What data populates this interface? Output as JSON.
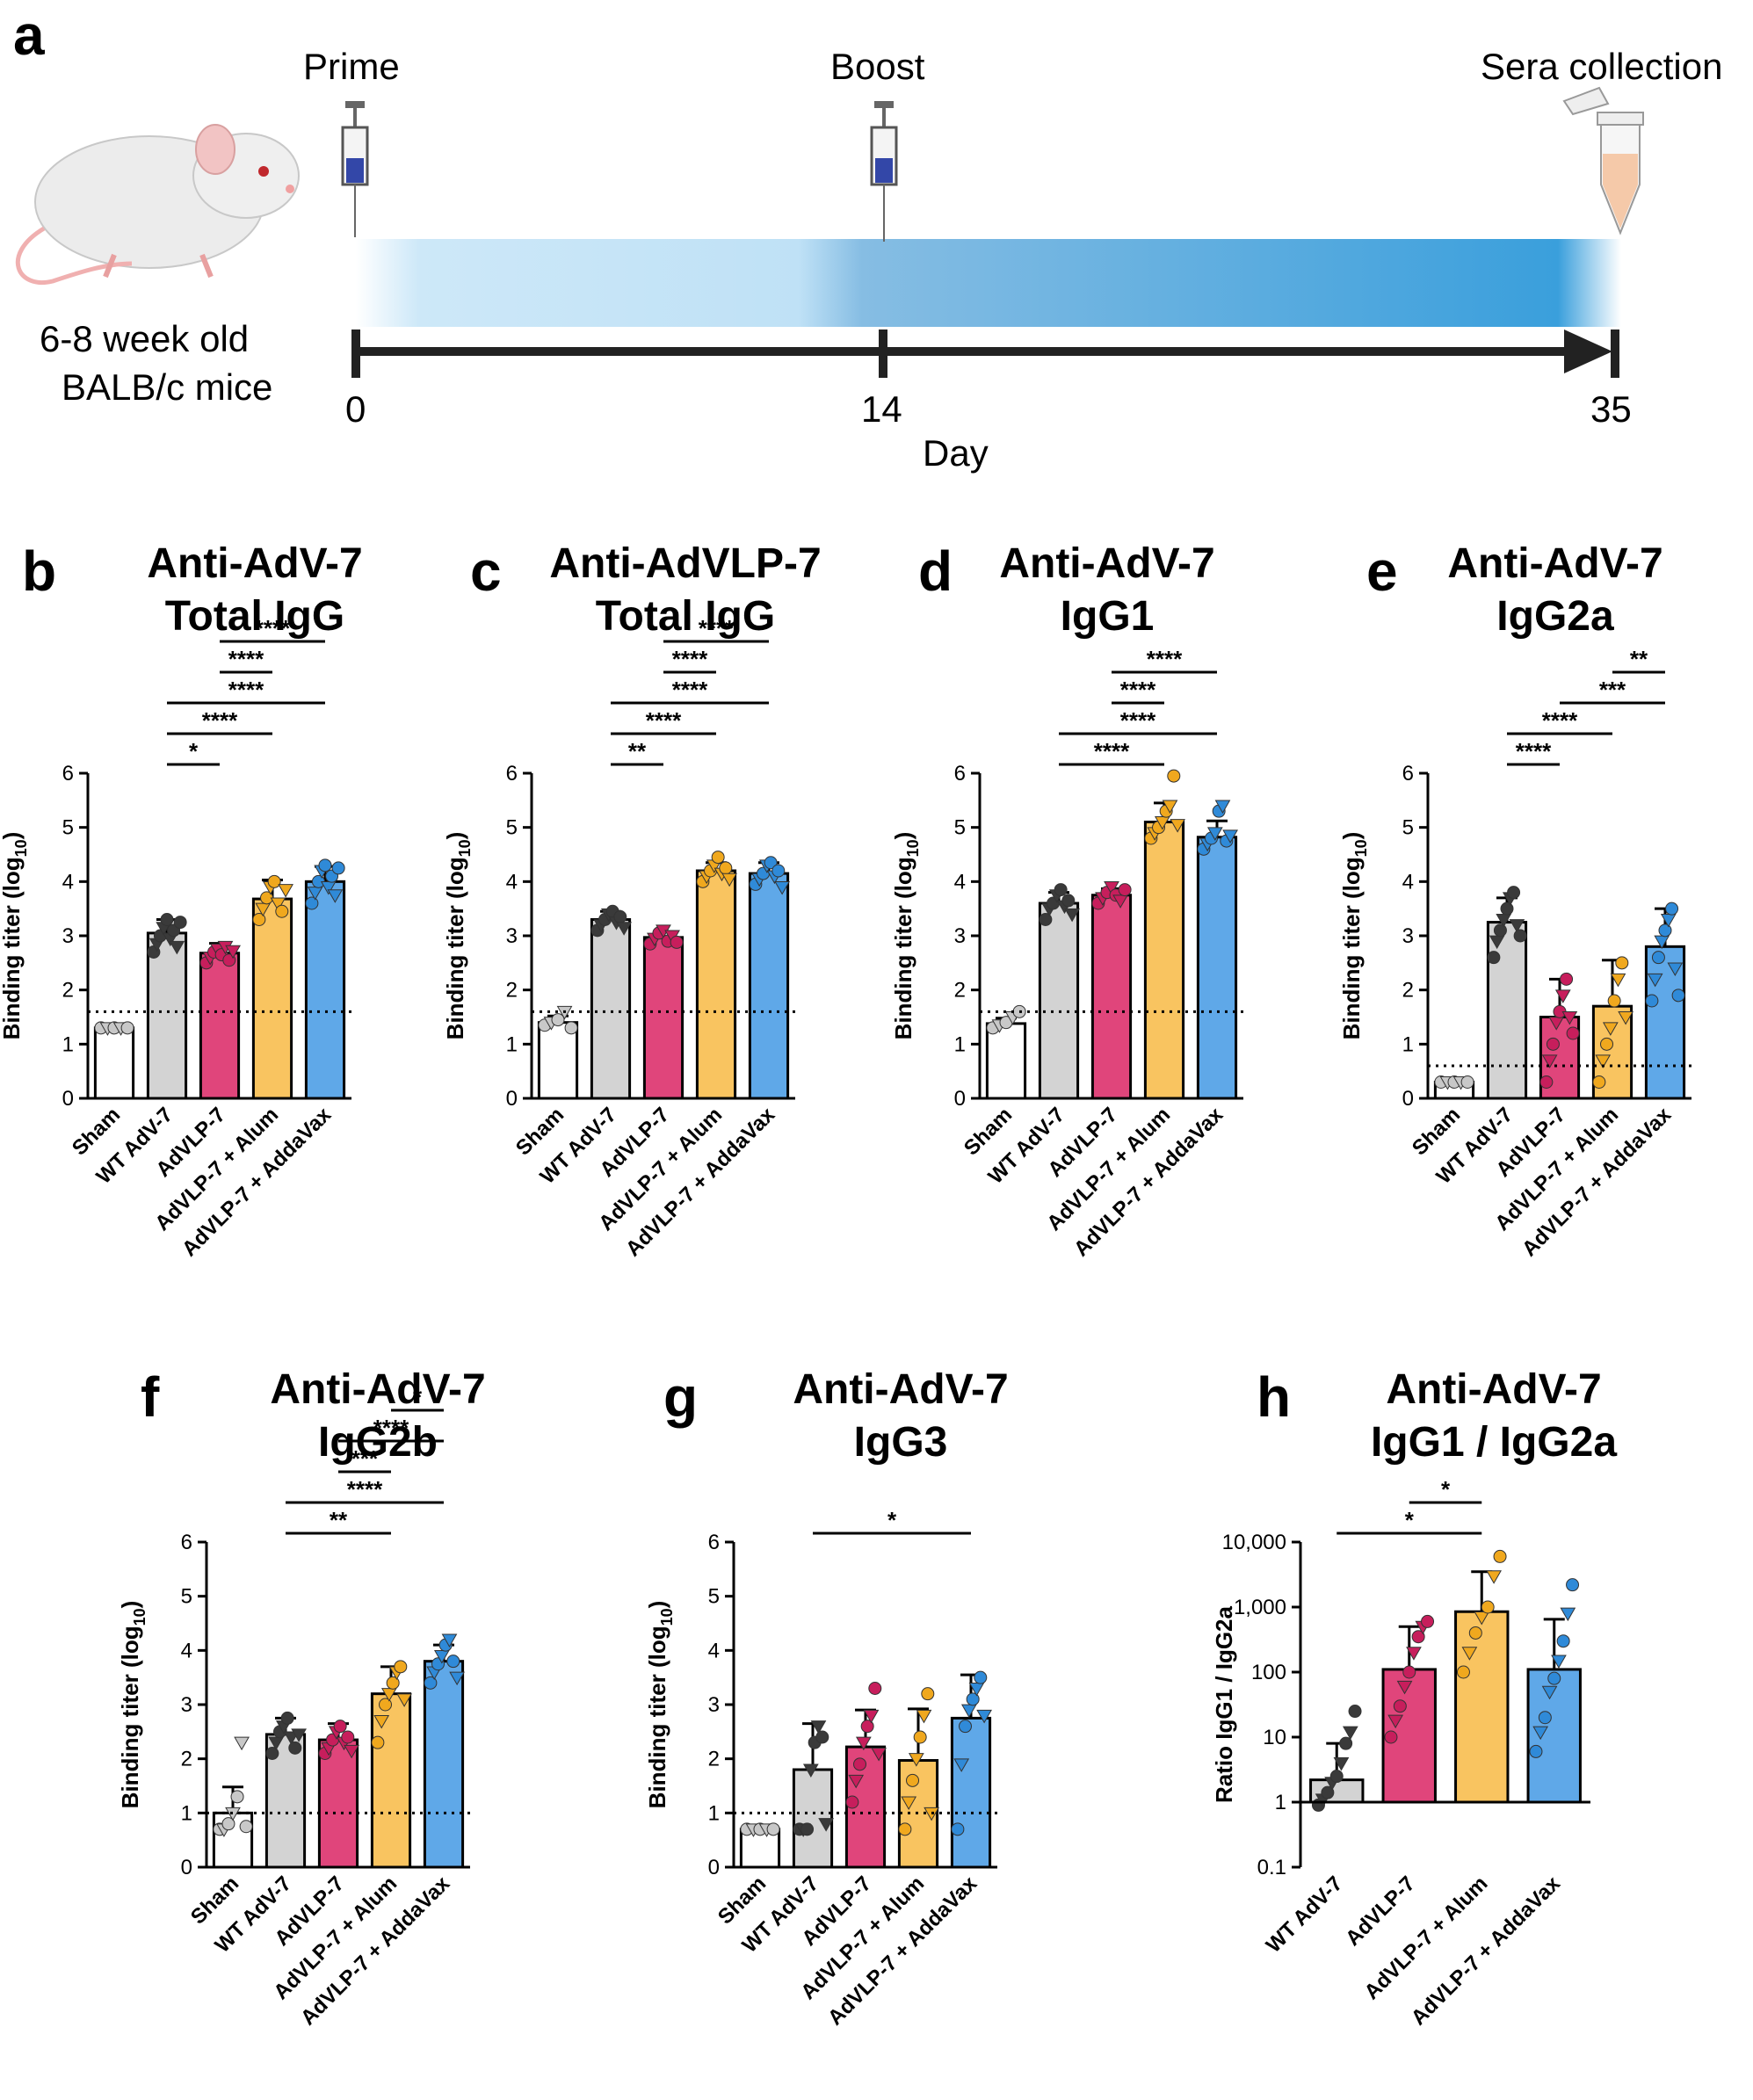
{
  "colors": {
    "sham": "#ffffff",
    "wt": "#d3d3d3",
    "advlp": "#e0457b",
    "alum": "#f9c460",
    "addavax": "#5fa8e8",
    "wt_pt": "#3a3a3a",
    "advlp_pt": "#c71e5c",
    "alum_pt": "#f0a81e",
    "addavax_pt": "#2f8ad8",
    "sham_pt": "#c8c8c8"
  },
  "timeline": {
    "letter": "a",
    "mouse_label_1": "6-8 week old",
    "mouse_label_2": "BALB/c mice",
    "prime": "Prime",
    "boost": "Boost",
    "sera": "Sera collection",
    "ticks": [
      "0",
      "14",
      "35"
    ],
    "xlabel": "Day"
  },
  "chart_data": [
    {
      "letter": "b",
      "title_1": "Anti-AdV-7",
      "title_2": "Total IgG",
      "type": "bar",
      "scale": "linear",
      "ylim": [
        0,
        6
      ],
      "yticks": [
        "0",
        "1",
        "2",
        "3",
        "4",
        "5",
        "6"
      ],
      "ylabel": "Binding titer (log",
      "ylabel_sub": "10",
      "ylabel_end": ")",
      "detection_limit": 1.6,
      "categories": [
        "Sham",
        "WT AdV-7",
        "AdVLP-7",
        "AdVLP-7 + Alum",
        "AdVLP-7 + AddaVax"
      ],
      "groups": [
        "sham",
        "wt",
        "advlp",
        "alum",
        "addavax"
      ],
      "values": [
        1.3,
        3.05,
        2.68,
        3.68,
        4.0
      ],
      "errors": [
        0.0,
        0.25,
        0.18,
        0.35,
        0.28
      ],
      "points": [
        [
          1.3,
          1.3,
          1.3,
          1.3,
          1.3
        ],
        [
          2.7,
          2.85,
          3.0,
          3.15,
          3.3,
          2.95,
          3.1,
          2.8,
          3.25
        ],
        [
          2.5,
          2.6,
          2.7,
          2.75,
          2.65,
          2.8,
          2.55,
          2.72
        ],
        [
          3.3,
          3.5,
          3.7,
          3.9,
          4.0,
          3.6,
          3.45,
          3.85
        ],
        [
          3.6,
          3.8,
          4.0,
          4.2,
          4.3,
          3.9,
          4.1,
          3.75,
          4.25
        ]
      ],
      "comparisons": [
        {
          "from": 1,
          "to": 2,
          "label": "*"
        },
        {
          "from": 1,
          "to": 3,
          "label": "****"
        },
        {
          "from": 1,
          "to": 4,
          "label": "****"
        },
        {
          "from": 2,
          "to": 3,
          "label": "****"
        },
        {
          "from": 2,
          "to": 4,
          "label": "****"
        }
      ]
    },
    {
      "letter": "c",
      "title_1": "Anti-AdVLP-7",
      "title_2": "Total IgG",
      "type": "bar",
      "scale": "linear",
      "ylim": [
        0,
        6
      ],
      "yticks": [
        "0",
        "1",
        "2",
        "3",
        "4",
        "5",
        "6"
      ],
      "ylabel": "Binding titer (log",
      "ylabel_sub": "10",
      "ylabel_end": ")",
      "detection_limit": 1.6,
      "categories": [
        "Sham",
        "WT AdV-7",
        "AdVLP-7",
        "AdVLP-7 + Alum",
        "AdVLP-7 + AddaVax"
      ],
      "groups": [
        "sham",
        "wt",
        "advlp",
        "alum",
        "addavax"
      ],
      "values": [
        1.4,
        3.3,
        2.97,
        4.2,
        4.15
      ],
      "errors": [
        0.12,
        0.15,
        0.1,
        0.15,
        0.2
      ],
      "points": [
        [
          1.35,
          1.4,
          1.45,
          1.6,
          1.3
        ],
        [
          3.1,
          3.2,
          3.3,
          3.4,
          3.45,
          3.25,
          3.35,
          3.15
        ],
        [
          2.85,
          2.95,
          3.05,
          3.1,
          2.9,
          3.0,
          2.88
        ],
        [
          4.0,
          4.1,
          4.2,
          4.3,
          4.45,
          4.15,
          4.25,
          4.05
        ],
        [
          3.95,
          4.05,
          4.15,
          4.3,
          4.35,
          4.1,
          4.2,
          3.9
        ]
      ],
      "comparisons": [
        {
          "from": 1,
          "to": 2,
          "label": "**"
        },
        {
          "from": 1,
          "to": 3,
          "label": "****"
        },
        {
          "from": 1,
          "to": 4,
          "label": "****"
        },
        {
          "from": 2,
          "to": 3,
          "label": "****"
        },
        {
          "from": 2,
          "to": 4,
          "label": "****"
        }
      ]
    },
    {
      "letter": "d",
      "title_1": "Anti-AdV-7",
      "title_2": "IgG1",
      "type": "bar",
      "scale": "linear",
      "ylim": [
        0,
        6
      ],
      "yticks": [
        "0",
        "1",
        "2",
        "3",
        "4",
        "5",
        "6"
      ],
      "ylabel": "Binding titer (log",
      "ylabel_sub": "10",
      "ylabel_end": ")",
      "detection_limit": 1.6,
      "categories": [
        "Sham",
        "WT AdV-7",
        "AdVLP-7",
        "AdVLP-7 + Alum",
        "AdVLP-7 + AddaVax"
      ],
      "groups": [
        "sham",
        "wt",
        "advlp",
        "alum",
        "addavax"
      ],
      "values": [
        1.38,
        3.6,
        3.75,
        5.1,
        4.82
      ],
      "errors": [
        0.1,
        0.2,
        0.12,
        0.35,
        0.3
      ],
      "points": [
        [
          1.3,
          1.35,
          1.4,
          1.5,
          1.6
        ],
        [
          3.3,
          3.5,
          3.6,
          3.75,
          3.85,
          3.55,
          3.65,
          3.4
        ],
        [
          3.6,
          3.7,
          3.8,
          3.9,
          3.75,
          3.65,
          3.85
        ],
        [
          4.8,
          4.9,
          5.0,
          5.1,
          5.3,
          5.4,
          5.95,
          5.05
        ],
        [
          4.6,
          4.7,
          4.8,
          4.9,
          5.3,
          5.4,
          4.75,
          4.85
        ]
      ],
      "comparisons": [
        {
          "from": 1,
          "to": 3,
          "label": "****"
        },
        {
          "from": 1,
          "to": 4,
          "label": "****"
        },
        {
          "from": 2,
          "to": 3,
          "label": "****"
        },
        {
          "from": 2,
          "to": 4,
          "label": "****"
        }
      ]
    },
    {
      "letter": "e",
      "title_1": "Anti-AdV-7",
      "title_2": "IgG2a",
      "type": "bar",
      "scale": "linear",
      "ylim": [
        0,
        6
      ],
      "yticks": [
        "0",
        "1",
        "2",
        "3",
        "4",
        "5",
        "6"
      ],
      "ylabel": "Binding titer (log",
      "ylabel_sub": "10",
      "ylabel_end": ")",
      "detection_limit": 0.6,
      "categories": [
        "Sham",
        "WT AdV-7",
        "AdVLP-7",
        "AdVLP-7 + Alum",
        "AdVLP-7 + AddaVax"
      ],
      "groups": [
        "sham",
        "wt",
        "advlp",
        "alum",
        "addavax"
      ],
      "values": [
        0.3,
        3.25,
        1.5,
        1.7,
        2.8
      ],
      "errors": [
        0.0,
        0.45,
        0.7,
        0.85,
        0.7
      ],
      "points": [
        [
          0.3,
          0.3,
          0.3,
          0.3,
          0.3
        ],
        [
          2.6,
          2.9,
          3.1,
          3.3,
          3.5,
          3.7,
          3.8,
          3.2,
          3.0
        ],
        [
          0.3,
          0.7,
          1.0,
          1.4,
          1.6,
          1.9,
          2.2,
          1.5,
          1.2
        ],
        [
          0.3,
          0.7,
          1.0,
          1.3,
          1.8,
          2.2,
          2.5,
          1.5
        ],
        [
          1.8,
          2.2,
          2.6,
          2.9,
          3.1,
          3.3,
          3.5,
          2.4,
          1.9
        ]
      ],
      "comparisons": [
        {
          "from": 1,
          "to": 2,
          "label": "****"
        },
        {
          "from": 1,
          "to": 3,
          "label": "****"
        },
        {
          "from": 2,
          "to": 4,
          "label": "***"
        },
        {
          "from": 3,
          "to": 4,
          "label": "**"
        }
      ]
    },
    {
      "letter": "f",
      "title_1": "Anti-AdV-7",
      "title_2": "IgG2b",
      "type": "bar",
      "scale": "linear",
      "ylim": [
        0,
        6
      ],
      "yticks": [
        "0",
        "1",
        "2",
        "3",
        "4",
        "5",
        "6"
      ],
      "ylabel": "Binding titer (log",
      "ylabel_sub": "10",
      "ylabel_end": ")",
      "detection_limit": 1.0,
      "categories": [
        "Sham",
        "WT AdV-7",
        "AdVLP-7",
        "AdVLP-7 + Alum",
        "AdVLP-7 + AddaVax"
      ],
      "groups": [
        "sham",
        "wt",
        "advlp",
        "alum",
        "addavax"
      ],
      "values": [
        1.0,
        2.45,
        2.35,
        3.2,
        3.8
      ],
      "errors": [
        0.48,
        0.3,
        0.3,
        0.5,
        0.3
      ],
      "points": [
        [
          0.7,
          0.7,
          0.8,
          1.0,
          1.3,
          2.3,
          0.75
        ],
        [
          2.1,
          2.3,
          2.5,
          2.6,
          2.75,
          2.4,
          2.2,
          2.45
        ],
        [
          2.1,
          2.2,
          2.35,
          2.5,
          2.6,
          2.3,
          2.4,
          2.15
        ],
        [
          2.3,
          2.7,
          3.0,
          3.2,
          3.4,
          3.6,
          3.7,
          3.1
        ],
        [
          3.4,
          3.6,
          3.75,
          3.9,
          4.1,
          4.2,
          3.8,
          3.5
        ]
      ],
      "comparisons": [
        {
          "from": 1,
          "to": 3,
          "label": "**"
        },
        {
          "from": 1,
          "to": 4,
          "label": "****"
        },
        {
          "from": 2,
          "to": 3,
          "label": "***"
        },
        {
          "from": 2,
          "to": 4,
          "label": "****"
        },
        {
          "from": 3,
          "to": 4,
          "label": "*"
        }
      ]
    },
    {
      "letter": "g",
      "title_1": "Anti-AdV-7",
      "title_2": "IgG3",
      "type": "bar",
      "scale": "linear",
      "ylim": [
        0,
        6
      ],
      "yticks": [
        "0",
        "1",
        "2",
        "3",
        "4",
        "5",
        "6"
      ],
      "ylabel": "Binding titer (log",
      "ylabel_sub": "10",
      "ylabel_end": ")",
      "detection_limit": 1.0,
      "categories": [
        "Sham",
        "WT AdV-7",
        "AdVLP-7",
        "AdVLP-7 + Alum",
        "AdVLP-7 + AddaVax"
      ],
      "groups": [
        "sham",
        "wt",
        "advlp",
        "alum",
        "addavax"
      ],
      "values": [
        0.7,
        1.8,
        2.22,
        1.97,
        2.75
      ],
      "errors": [
        0.0,
        0.85,
        0.68,
        0.95,
        0.8
      ],
      "points": [
        [
          0.7,
          0.7,
          0.7,
          0.7,
          0.7
        ],
        [
          0.7,
          0.7,
          0.7,
          1.8,
          2.3,
          2.6,
          2.4,
          0.8
        ],
        [
          1.2,
          1.6,
          1.9,
          2.3,
          2.6,
          2.8,
          3.3,
          2.1
        ],
        [
          0.7,
          1.2,
          1.6,
          2.0,
          2.4,
          2.8,
          3.2,
          1.0
        ],
        [
          0.7,
          1.9,
          2.6,
          2.9,
          3.1,
          3.3,
          3.5,
          2.8
        ]
      ],
      "comparisons": [
        {
          "from": 1,
          "to": 4,
          "label": "*"
        }
      ]
    },
    {
      "letter": "h",
      "title_1": "Anti-AdV-7",
      "title_2": "IgG1 / IgG2a",
      "type": "bar",
      "scale": "log",
      "ylim": [
        0.1,
        10000
      ],
      "yticks": [
        "0.1",
        "1",
        "10",
        "100",
        "1,000",
        "10,000"
      ],
      "ylabel": "Ratio IgG1 / IgG2a",
      "ylabel_sub": "",
      "ylabel_end": "",
      "detection_limit": 1,
      "categories": [
        "WT AdV-7",
        "AdVLP-7",
        "AdVLP-7 + Alum",
        "AdVLP-7 + AddaVax"
      ],
      "groups": [
        "wt",
        "advlp",
        "alum",
        "addavax"
      ],
      "values": [
        2.2,
        110,
        850,
        110
      ],
      "errors_hi": [
        8,
        500,
        3500,
        650
      ],
      "points": [
        [
          0.9,
          1.1,
          1.4,
          2,
          2.5,
          4,
          8,
          12,
          25
        ],
        [
          10,
          18,
          30,
          60,
          100,
          200,
          350,
          500,
          600
        ],
        [
          100,
          200,
          400,
          700,
          1000,
          3000,
          6000
        ],
        [
          6,
          12,
          20,
          50,
          80,
          150,
          300,
          800,
          2200
        ]
      ],
      "comparisons": [
        {
          "from": 0,
          "to": 2,
          "label": "*"
        },
        {
          "from": 1,
          "to": 2,
          "label": "*"
        }
      ]
    }
  ]
}
